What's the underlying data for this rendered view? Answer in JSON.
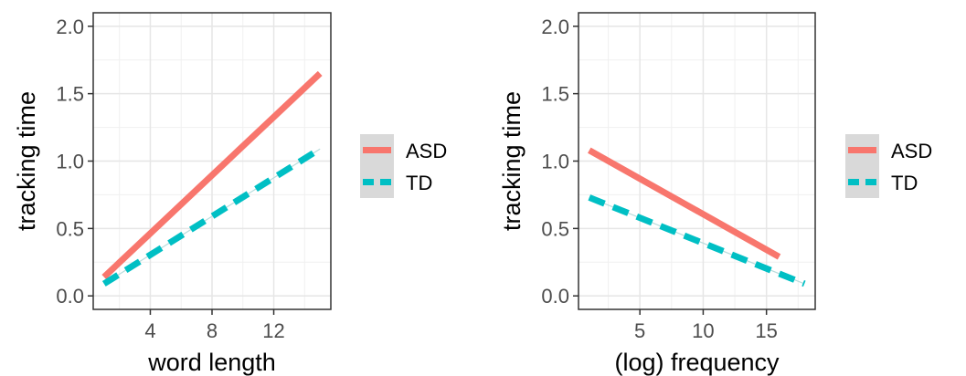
{
  "chart_data": [
    {
      "type": "line",
      "xlabel": "word length",
      "ylabel": "tracking time",
      "xlim": [
        0.3,
        15.7
      ],
      "ylim": [
        -0.1,
        2.1
      ],
      "x_ticks": [
        4,
        8,
        12
      ],
      "y_ticks": [
        0.0,
        0.5,
        1.0,
        1.5,
        2.0
      ],
      "x_tick_labels": [
        "4",
        "8",
        "12"
      ],
      "y_tick_labels": [
        "0.0",
        "0.5",
        "1.0",
        "1.5",
        "2.0"
      ],
      "grid": true,
      "legend_position": "right",
      "series": [
        {
          "name": "ASD",
          "x": [
            1,
            15
          ],
          "values": [
            0.14,
            1.65
          ],
          "color": "#F8766D",
          "linestyle": "solid"
        },
        {
          "name": "TD",
          "x": [
            1,
            15
          ],
          "values": [
            0.09,
            1.09
          ],
          "color": "#00BFC4",
          "linestyle": "dashed"
        }
      ]
    },
    {
      "type": "line",
      "xlabel": "(log) frequency",
      "ylabel": "tracking time",
      "xlim": [
        0.15,
        18.85
      ],
      "ylim": [
        -0.1,
        2.1
      ],
      "x_ticks": [
        5,
        10,
        15
      ],
      "y_ticks": [
        0.0,
        0.5,
        1.0,
        1.5,
        2.0
      ],
      "x_tick_labels": [
        "5",
        "10",
        "15"
      ],
      "y_tick_labels": [
        "0.0",
        "0.5",
        "1.0",
        "1.5",
        "2.0"
      ],
      "grid": true,
      "legend_position": "right",
      "series": [
        {
          "name": "ASD",
          "x": [
            1,
            16
          ],
          "values": [
            1.08,
            0.29
          ],
          "color": "#F8766D",
          "linestyle": "solid"
        },
        {
          "name": "TD",
          "x": [
            1,
            18
          ],
          "values": [
            0.73,
            0.09
          ],
          "color": "#00BFC4",
          "linestyle": "dashed"
        }
      ]
    }
  ]
}
